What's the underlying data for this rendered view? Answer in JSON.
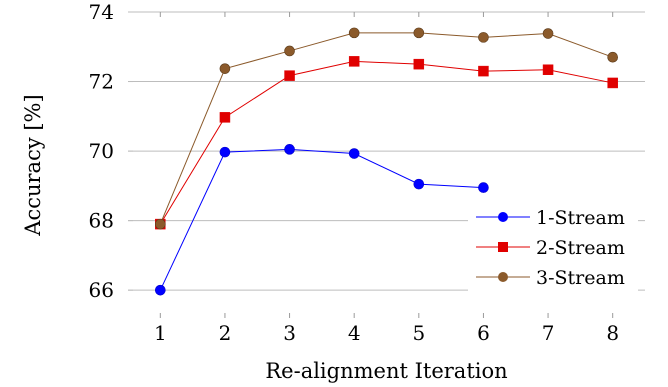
{
  "chart_data": {
    "type": "line",
    "xlabel": "Re-alignment Iteration",
    "ylabel": "Accuracy [%]",
    "x": [
      1,
      2,
      3,
      4,
      5,
      6,
      7,
      8
    ],
    "xticks": [
      "1",
      "2",
      "3",
      "4",
      "5",
      "6",
      "7",
      "8"
    ],
    "xlim": [
      0.5,
      8.5
    ],
    "ylim": [
      65.2,
      74.0
    ],
    "yticks": [
      "66",
      "68",
      "70",
      "72",
      "74"
    ],
    "grid": "horizontal",
    "legend_position": "bottom-right",
    "series": [
      {
        "name": "1-Stream",
        "color": "#0000ff",
        "marker": "circle",
        "x": [
          1,
          2,
          3,
          4,
          5,
          6
        ],
        "values": [
          66.0,
          69.97,
          70.05,
          69.93,
          69.05,
          68.95
        ]
      },
      {
        "name": "2-Stream",
        "color": "#e00000",
        "marker": "square",
        "x": [
          1,
          2,
          3,
          4,
          5,
          6,
          7,
          8
        ],
        "values": [
          67.9,
          70.97,
          72.17,
          72.58,
          72.5,
          72.3,
          72.34,
          71.96
        ]
      },
      {
        "name": "3-Stream",
        "color": "#8b5a2b",
        "marker": "circle",
        "x": [
          1,
          2,
          3,
          4,
          5,
          6,
          7,
          8
        ],
        "values": [
          67.9,
          72.37,
          72.88,
          73.4,
          73.4,
          73.27,
          73.38,
          72.7
        ]
      }
    ]
  }
}
